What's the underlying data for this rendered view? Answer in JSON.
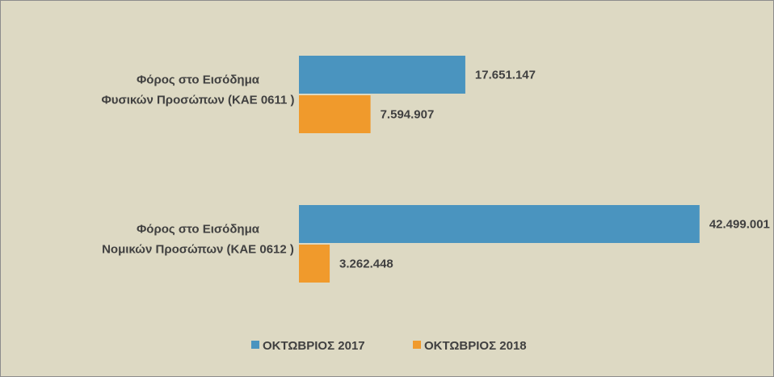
{
  "chart_data": {
    "type": "bar",
    "orientation": "horizontal",
    "categories": [
      [
        "Φόρος στο Εισόδημα",
        "Φυσικών Προσώπων (ΚΑΕ 0611 )"
      ],
      [
        "Φόρος στο Εισόδημα",
        "Νομικών Προσώπων (ΚΑΕ 0612 )"
      ]
    ],
    "series": [
      {
        "name": "ΟΚΤΩΒΡΙΟΣ 2017",
        "color": "#4a94bf",
        "values": [
          17651147,
          42499001
        ],
        "labels": [
          "17.651.147",
          "42.499.001"
        ]
      },
      {
        "name": "ΟΚΤΩΒΡΙΟΣ 2018",
        "color": "#f09a2c",
        "values": [
          7594907,
          3262448
        ],
        "labels": [
          "7.594.907",
          "3.262.448"
        ]
      }
    ],
    "xlim": [
      0,
      45000000
    ],
    "grid": false,
    "axes_visible": false,
    "legend_position": "bottom",
    "background": "#ddd9c3"
  }
}
